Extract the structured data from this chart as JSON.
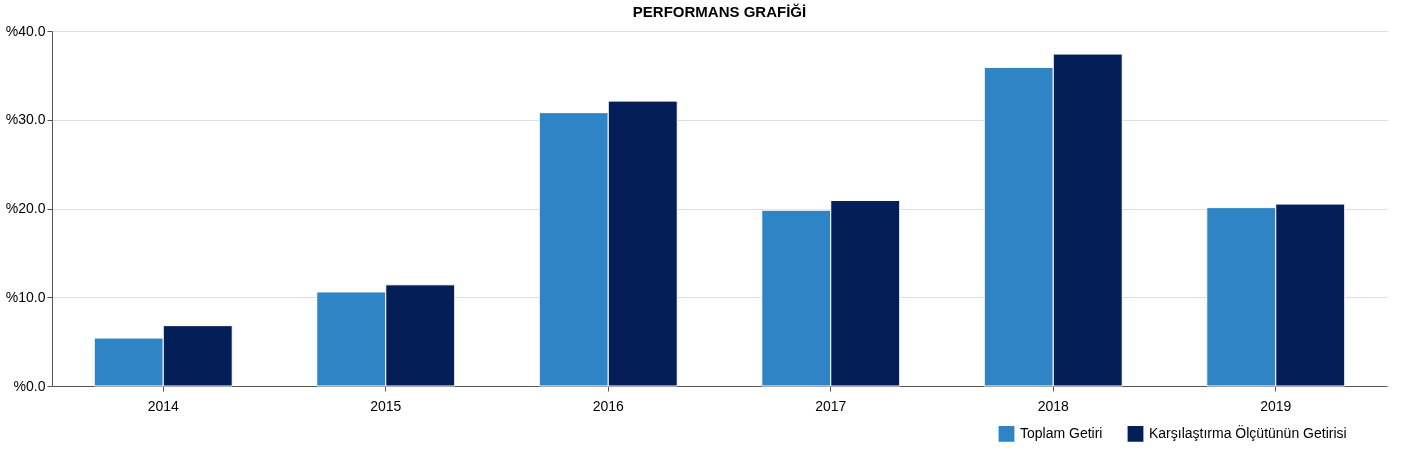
{
  "chart_data": {
    "type": "bar",
    "title": "PERFORMANS GRAFİĞİ",
    "categories": [
      "2014",
      "2015",
      "2016",
      "2017",
      "2018",
      "2019"
    ],
    "series": [
      {
        "name": "Toplam Getiri",
        "color": "#2e84c4",
        "values": [
          5.4,
          10.6,
          30.8,
          19.8,
          35.9,
          20.1
        ]
      },
      {
        "name": "Karşılaştırma Ölçütünün Getirisi",
        "color": "#041e58",
        "values": [
          6.8,
          11.4,
          32.1,
          20.9,
          37.4,
          20.5
        ]
      }
    ],
    "ylim": [
      0,
      40
    ],
    "yticks": [
      {
        "value": 0,
        "label": "%0.0"
      },
      {
        "value": 10,
        "label": "%10.0"
      },
      {
        "value": 20,
        "label": "%20.0"
      },
      {
        "value": 30,
        "label": "%30.0"
      },
      {
        "value": 40,
        "label": "%40.0"
      }
    ],
    "grid": "y",
    "legend": "bottom right"
  }
}
